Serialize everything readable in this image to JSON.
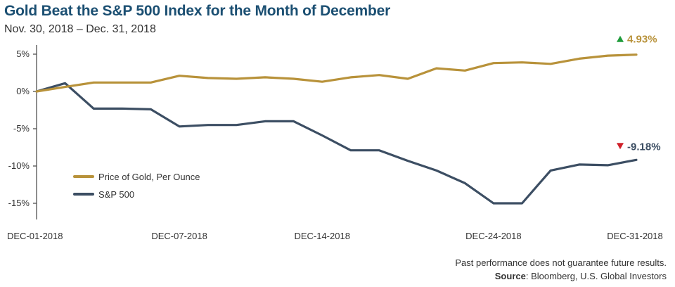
{
  "chart_data": {
    "type": "line",
    "title": "Gold Beat the S&P 500 Index for the Month of December",
    "subtitle": "Nov. 30, 2018 – Dec. 31, 2018",
    "xlabel": "",
    "ylabel": "",
    "ylim": [
      -17,
      7
    ],
    "y_ticks": [
      5,
      0,
      -5,
      -10,
      -15
    ],
    "y_tick_labels": [
      "5%",
      "0%",
      "-5%",
      "-10%",
      "-15%"
    ],
    "x_tick_labels": [
      "DEC-01-2018",
      "DEC-07-2018",
      "DEC-14-2018",
      "DEC-24-2018",
      "DEC-31-2018"
    ],
    "x_tick_indices": [
      0,
      5,
      10,
      16,
      21
    ],
    "grid": false,
    "series": [
      {
        "name": "Price of Gold, Per Ounce",
        "color": "#b8923a",
        "values": [
          0,
          0.6,
          1.2,
          1.2,
          1.2,
          2.1,
          1.8,
          1.7,
          1.9,
          1.7,
          1.3,
          1.9,
          2.2,
          1.7,
          3.1,
          2.8,
          3.8,
          3.9,
          3.7,
          4.4,
          4.8,
          4.93
        ]
      },
      {
        "name": "S&P 500",
        "color": "#3c4e63",
        "values": [
          0,
          1.1,
          -2.3,
          -2.3,
          -2.4,
          -4.7,
          -4.5,
          -4.5,
          -4.0,
          -4.0,
          -5.9,
          -7.9,
          -7.9,
          -9.3,
          -10.6,
          -12.3,
          -15.0,
          -15.0,
          -10.6,
          -9.8,
          -9.9,
          -9.18
        ]
      }
    ],
    "end_labels": [
      {
        "text": "4.93%",
        "color": "#b8923a",
        "arrow_color": "#1e9b3a",
        "direction": "up"
      },
      {
        "text": "-9.18%",
        "color": "#3c4e63",
        "arrow_color": "#d0202a",
        "direction": "down"
      }
    ],
    "legend": [
      "Price of Gold, Per Ounce",
      "S&P 500"
    ],
    "legend_position": "lower-left"
  },
  "footer": {
    "disclaimer": "Past performance does not guarantee future results.",
    "source_label": "Source",
    "source_text": ": Bloomberg, U.S. Global Investors"
  }
}
